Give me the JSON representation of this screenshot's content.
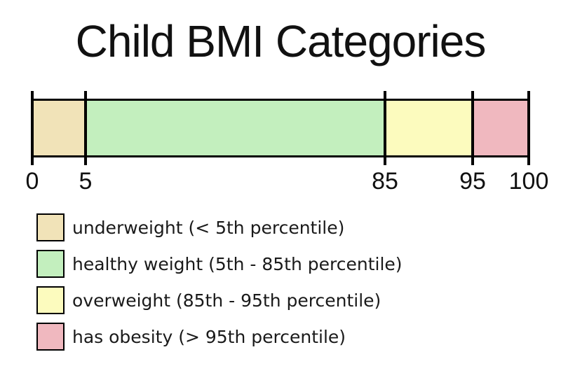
{
  "page": {
    "background_color": "#ffffff",
    "line_color": "#000000",
    "text_color": "#111111"
  },
  "chart_data": {
    "type": "bar",
    "variant": "segmented-range-bar",
    "title": "Child BMI Categories",
    "xlabel": "",
    "ylabel": "",
    "axis": {
      "ticks": [
        "0",
        "5",
        "85",
        "95",
        "100"
      ],
      "range": [
        0,
        100
      ],
      "note": "percentile scale, segments not drawn to linear scale"
    },
    "segments": [
      {
        "name": "underweight",
        "from": "0",
        "to": "5",
        "color": "#f1e3b8"
      },
      {
        "name": "healthy weight",
        "from": "5",
        "to": "85",
        "color": "#c3efbe"
      },
      {
        "name": "overweight",
        "from": "85",
        "to": "95",
        "color": "#fcfbbe"
      },
      {
        "name": "has obesity",
        "from": "95",
        "to": "100",
        "color": "#f0b8bf"
      }
    ],
    "legend": {
      "position": "bottom-left",
      "items": [
        {
          "color": "#f1e3b8",
          "label": "underweight (< 5th percentile)"
        },
        {
          "color": "#c3efbe",
          "label": "healthy weight (5th - 85th percentile)"
        },
        {
          "color": "#fcfbbe",
          "label": "overweight (85th - 95th percentile)"
        },
        {
          "color": "#f0b8bf",
          "label": "has obesity (> 95th percentile)"
        }
      ]
    }
  }
}
